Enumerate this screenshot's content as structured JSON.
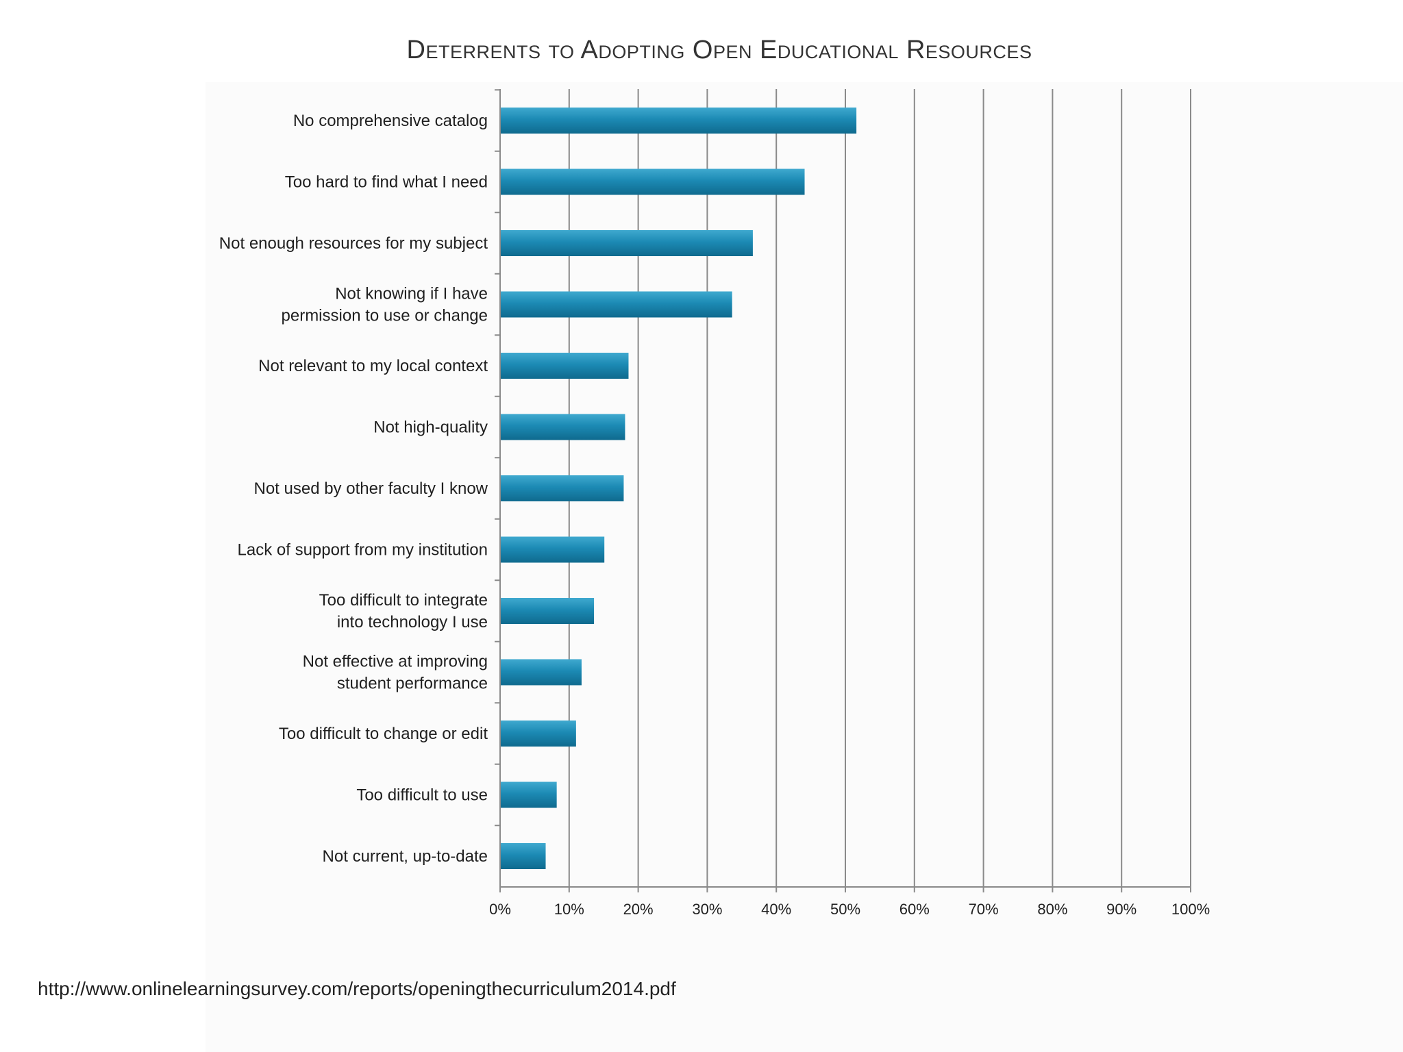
{
  "chart_data": {
    "type": "bar",
    "orientation": "horizontal",
    "title": "Deterrents to Adopting Open Educational Resources",
    "categories": [
      [
        "No comprehensive catalog"
      ],
      [
        "Too hard to find what I need"
      ],
      [
        "Not enough resources for my subject"
      ],
      [
        "Not knowing if I have",
        "permission to use or change"
      ],
      [
        "Not relevant to my local context"
      ],
      [
        "Not high-quality"
      ],
      [
        "Not used by other faculty I know"
      ],
      [
        "Lack of support from my institution"
      ],
      [
        "Too difficult to integrate",
        "into technology I use"
      ],
      [
        "Not effective at improving",
        "student performance"
      ],
      [
        "Too difficult to change or edit"
      ],
      [
        "Too difficult to use"
      ],
      [
        "Not current, up-to-date"
      ]
    ],
    "values": [
      51.5,
      44,
      36.5,
      33.5,
      18.5,
      18,
      17.8,
      15,
      13.5,
      11.7,
      10.9,
      8.1,
      6.5
    ],
    "xlim": [
      0,
      100
    ],
    "xticks": [
      "0%",
      "10%",
      "20%",
      "30%",
      "40%",
      "50%",
      "60%",
      "70%",
      "80%",
      "90%",
      "100%"
    ],
    "grid": "vertical",
    "bar_color": "#1c8ab4"
  },
  "source_url": "http://www.onlinelearningsurvey.com/reports/openingthecurriculum2014.pdf"
}
